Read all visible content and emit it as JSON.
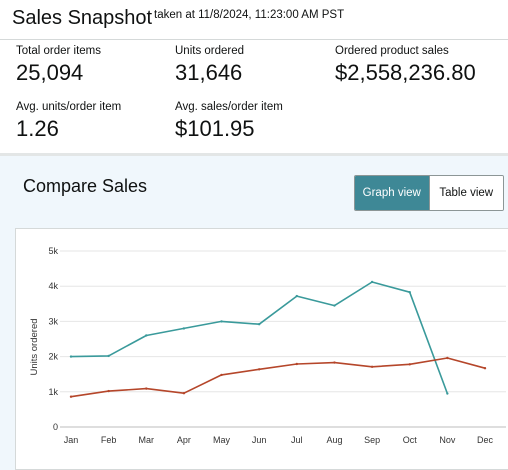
{
  "header": {
    "title": "Sales Snapshot",
    "taken_at": "taken at 11/8/2024, 11:23:00 AM PST"
  },
  "metrics": [
    {
      "label": "Total order items",
      "value": "25,094"
    },
    {
      "label": "Units ordered",
      "value": "31,646"
    },
    {
      "label": "Ordered product sales",
      "value": "$2,558,236.80"
    },
    {
      "label": "Avg. units/order item",
      "value": "1.26"
    },
    {
      "label": "Avg. sales/order item",
      "value": "$101.95"
    }
  ],
  "compare": {
    "title": "Compare Sales",
    "graph_view_label": "Graph view",
    "table_view_label": "Table view"
  },
  "colors": {
    "series_1": "#3a9a9b",
    "series_2": "#b5462a",
    "toggle_active": "#3e8896",
    "panel_bg": "#f0f7fc"
  },
  "chart_data": {
    "type": "line",
    "ylabel": "Units ordered",
    "xlabel": "",
    "categories": [
      "Jan",
      "Feb",
      "Mar",
      "Apr",
      "May",
      "Jun",
      "Jul",
      "Aug",
      "Sep",
      "Oct",
      "Nov",
      "Dec"
    ],
    "y_ticks": [
      "0",
      "1k",
      "2k",
      "3k",
      "4k",
      "5k"
    ],
    "ylim": [
      0,
      5000
    ],
    "grid": "horizontal",
    "series": [
      {
        "color": "#3a9a9b",
        "values": [
          2000,
          2020,
          2600,
          2800,
          3000,
          2920,
          3720,
          3450,
          4120,
          3830,
          950,
          null
        ]
      },
      {
        "color": "#b5462a",
        "values": [
          860,
          1020,
          1090,
          960,
          1480,
          1640,
          1790,
          1830,
          1710,
          1780,
          1960,
          1670
        ]
      }
    ]
  }
}
